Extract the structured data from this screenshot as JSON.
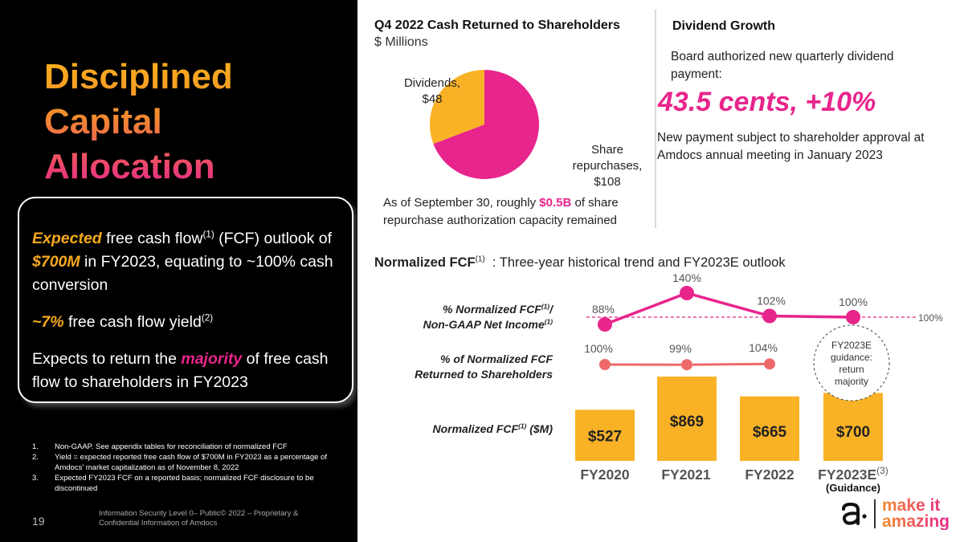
{
  "left": {
    "title": [
      "Disciplined",
      "Capital",
      "Allocation"
    ],
    "callout": {
      "p1_em": "Expected",
      "p1_a": " free cash flow",
      "p1_sup": "(1)",
      "p1_b": " (FCF) outlook of ",
      "p1_val": "$700M",
      "p1_c": " in FY2023, equating to ~100% cash conversion",
      "p2_val": "~7%",
      "p2_a": " free cash flow yield",
      "p2_sup": "(2)",
      "p3_a": "Expects to return the ",
      "p3_em": "majority",
      "p3_b": " of free cash flow to shareholders in FY2023"
    },
    "footnotes": [
      {
        "num": "1.",
        "text": "Non-GAAP. See appendix tables for reconciliation of normalized FCF"
      },
      {
        "num": "2.",
        "text": "Yield = expected reported free cash flow of $700M in FY2023 as a percentage of Amdocs' market capitalization as of November 8, 2022"
      },
      {
        "num": "3.",
        "text": "Expected FY2023 FCF on a reported basis; normalized FCF disclosure to be discontinued"
      }
    ],
    "page_number": "19",
    "footer": "Information Security Level 0– Public© 2022 – Proprietary & Confidential Information of Amdocs"
  },
  "pie_section": {
    "title": "Q4 2022 Cash Returned to Shareholders",
    "subtitle": "$ Millions",
    "note_a": "As of September 30, roughly ",
    "note_val": "$0.5B",
    "note_b": " of share repurchase authorization capacity remained"
  },
  "dividend": {
    "title": "Dividend Growth",
    "line1": "Board authorized new quarterly dividend payment:",
    "big": "43.5 cents, +10%",
    "line2": "New payment subject to shareholder approval at Amdocs annual meeting in January 2023"
  },
  "fcf_section": {
    "title_a": "Normalized FCF",
    "title_sup": "(1)",
    "title_b": " : Three-year historical trend and FY2023E outlook",
    "row1_a": "% Normalized FCF",
    "row1_sup1": "(1)",
    "row1_b": "/",
    "row1_c": "Non-GAAP Net Income",
    "row1_sup2": "(1)",
    "row2_a": "% of Normalized FCF",
    "row2_b": "Returned to Shareholders",
    "row3_a": "Normalized FCF",
    "row3_sup": "(1)",
    "row3_b": " ($M)",
    "guidance_lines": [
      "FY2023E",
      "guidance:",
      "return",
      "majority"
    ],
    "fy2023_sup": "(3)",
    "fy2023_sub": "(Guidance)"
  },
  "chart_data": [
    {
      "type": "pie",
      "title": "Q4 2022 Cash Returned to Shareholders",
      "unit": "$ Millions",
      "slices": [
        {
          "label": "Share repurchases,",
          "value_label": "$108",
          "value": 108,
          "color": "#e8258c"
        },
        {
          "label": "Dividends,",
          "value_label": "$48",
          "value": 48,
          "color": "#f9b226"
        }
      ]
    },
    {
      "type": "bar",
      "title": "Normalized FCF (1) ($M)",
      "categories": [
        "FY2020",
        "FY2021",
        "FY2022",
        "FY2023E"
      ],
      "values": [
        527,
        869,
        665,
        700
      ],
      "labels": [
        "$527",
        "$869",
        "$665",
        "$700"
      ],
      "ylim": [
        0,
        900
      ],
      "color": "#f9b226"
    },
    {
      "type": "line",
      "title": "% Normalized FCF(1)/ Non-GAAP Net Income(1)",
      "categories": [
        "FY2020",
        "FY2021",
        "FY2022",
        "FY2023E"
      ],
      "values": [
        88,
        140,
        102,
        100
      ],
      "labels": [
        "88%",
        "140%",
        "102%",
        "100%"
      ],
      "reference": {
        "value": 100,
        "label": "100%"
      },
      "color": "#e8258c"
    },
    {
      "type": "line",
      "title": "% of Normalized FCF Returned to Shareholders",
      "categories": [
        "FY2020",
        "FY2021",
        "FY2022"
      ],
      "values": [
        100,
        99,
        104
      ],
      "labels": [
        "100%",
        "99%",
        "104%"
      ],
      "color": "#ee6a6a"
    }
  ],
  "logo": {
    "line1": "make it",
    "line2": "amazing",
    "glyph": "a·"
  }
}
